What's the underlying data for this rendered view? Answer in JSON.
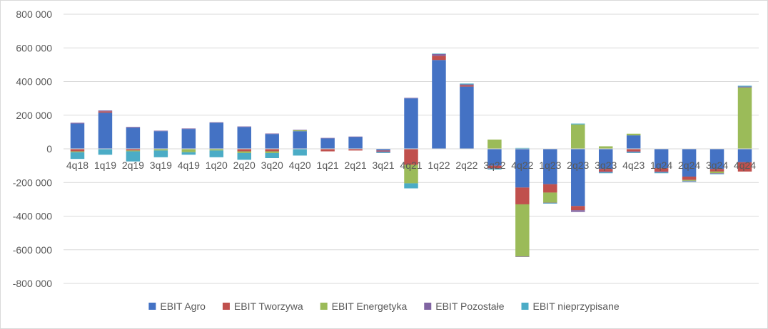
{
  "chart_data": {
    "type": "bar",
    "stacked": true,
    "categories": [
      "4q18",
      "1q19",
      "2q19",
      "3q19",
      "4q19",
      "1q20",
      "2q20",
      "3q20",
      "4q20",
      "1q21",
      "2q21",
      "3q21",
      "4q21",
      "1q22",
      "2q22",
      "3q22",
      "4q22",
      "1q23",
      "2q23",
      "3q23",
      "4q23",
      "1q24",
      "2q24",
      "3q24",
      "4q24"
    ],
    "series": [
      {
        "name": "EBIT Agro",
        "color": "#4472C4",
        "values": [
          150000,
          215000,
          125000,
          105000,
          118000,
          155000,
          130000,
          88000,
          105000,
          62000,
          70000,
          -10000,
          300000,
          528000,
          370000,
          -100000,
          -230000,
          -210000,
          -340000,
          -120000,
          80000,
          -115000,
          -165000,
          -120000,
          -80000
        ]
      },
      {
        "name": "EBIT Tworzywa",
        "color": "#C0504D",
        "values": [
          -15000,
          8000,
          -10000,
          0,
          0,
          0,
          -15000,
          -15000,
          0,
          -15000,
          -10000,
          -5000,
          -95000,
          25000,
          8000,
          -15000,
          -100000,
          -50000,
          -25000,
          -15000,
          -15000,
          -20000,
          -20000,
          -15000,
          -55000
        ]
      },
      {
        "name": "EBIT Energetyka",
        "color": "#9BBB59",
        "values": [
          -5000,
          0,
          -5000,
          -10000,
          -20000,
          -10000,
          -10000,
          -10000,
          5000,
          0,
          0,
          0,
          -110000,
          0,
          0,
          55000,
          -310000,
          -60000,
          145000,
          15000,
          10000,
          0,
          -5000,
          -10000,
          365000
        ]
      },
      {
        "name": "EBIT Pozostałe",
        "color": "#8064A2",
        "values": [
          5000,
          5000,
          5000,
          3000,
          3000,
          3000,
          3000,
          3000,
          3000,
          3000,
          3000,
          -5000,
          3000,
          10000,
          5000,
          -3000,
          -3000,
          -3000,
          -10000,
          -5000,
          -5000,
          -5000,
          -3000,
          -3000,
          5000
        ]
      },
      {
        "name": "EBIT nieprzypisane",
        "color": "#4BACC6",
        "values": [
          -40000,
          -35000,
          -60000,
          -40000,
          -15000,
          -40000,
          -40000,
          -30000,
          -40000,
          0,
          0,
          -5000,
          -30000,
          3000,
          5000,
          -5000,
          5000,
          -3000,
          5000,
          -5000,
          -5000,
          -5000,
          -3000,
          -3000,
          5000
        ]
      }
    ],
    "ylim": [
      -800000,
      800000
    ],
    "yticks": [
      -800000,
      -600000,
      -400000,
      -200000,
      0,
      200000,
      400000,
      600000,
      800000
    ],
    "ytick_labels": [
      "-800 000",
      "-600 000",
      "-400 000",
      "-200 000",
      "0",
      "200 000",
      "400 000",
      "600 000",
      "800 000"
    ],
    "title": "",
    "xlabel": "",
    "ylabel": "",
    "grid": true,
    "legend_position": "bottom"
  }
}
